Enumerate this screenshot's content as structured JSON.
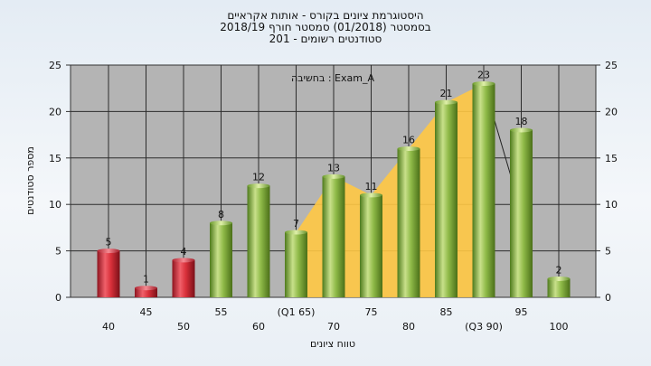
{
  "title": {
    "line1": "היסטוגרמת ציונים בקורס - אותות אקראיים",
    "line2": "בסמסטר  (01/2018)  סמסטר חורף 2018/19",
    "line3": "סטודנטים רשומים - 201"
  },
  "annotation": "בחשיבה : Exam_A",
  "colors": {
    "plot_bg": "#b4b4b4",
    "grid": "#2c2c2c",
    "fail_bar": "#d9303a",
    "pass_bar": "#8fba48",
    "area": "#ffc844"
  },
  "chart_data": {
    "type": "bar",
    "title": "היסטוגרמת ציונים בקורס - אותות אקראיים",
    "xlabel": "טווח ציונים",
    "ylabel": "מספר סטודנטים",
    "ylim": [
      0,
      25
    ],
    "yticks": [
      0,
      5,
      10,
      15,
      20,
      25
    ],
    "grid": true,
    "categories": [
      "40",
      "45",
      "50",
      "55",
      "60",
      "(Q1 65)",
      "70",
      "75",
      "80",
      "85",
      "(Q3 90)",
      "95",
      "100"
    ],
    "values": [
      5,
      1,
      4,
      8,
      12,
      7,
      13,
      11,
      16,
      21,
      23,
      18,
      2
    ],
    "bar_group": [
      "fail",
      "fail",
      "fail",
      "pass",
      "pass",
      "pass",
      "pass",
      "pass",
      "pass",
      "pass",
      "pass",
      "pass",
      "pass"
    ],
    "shaded_range": [
      "(Q1 65)",
      "(Q3 90)"
    ]
  }
}
